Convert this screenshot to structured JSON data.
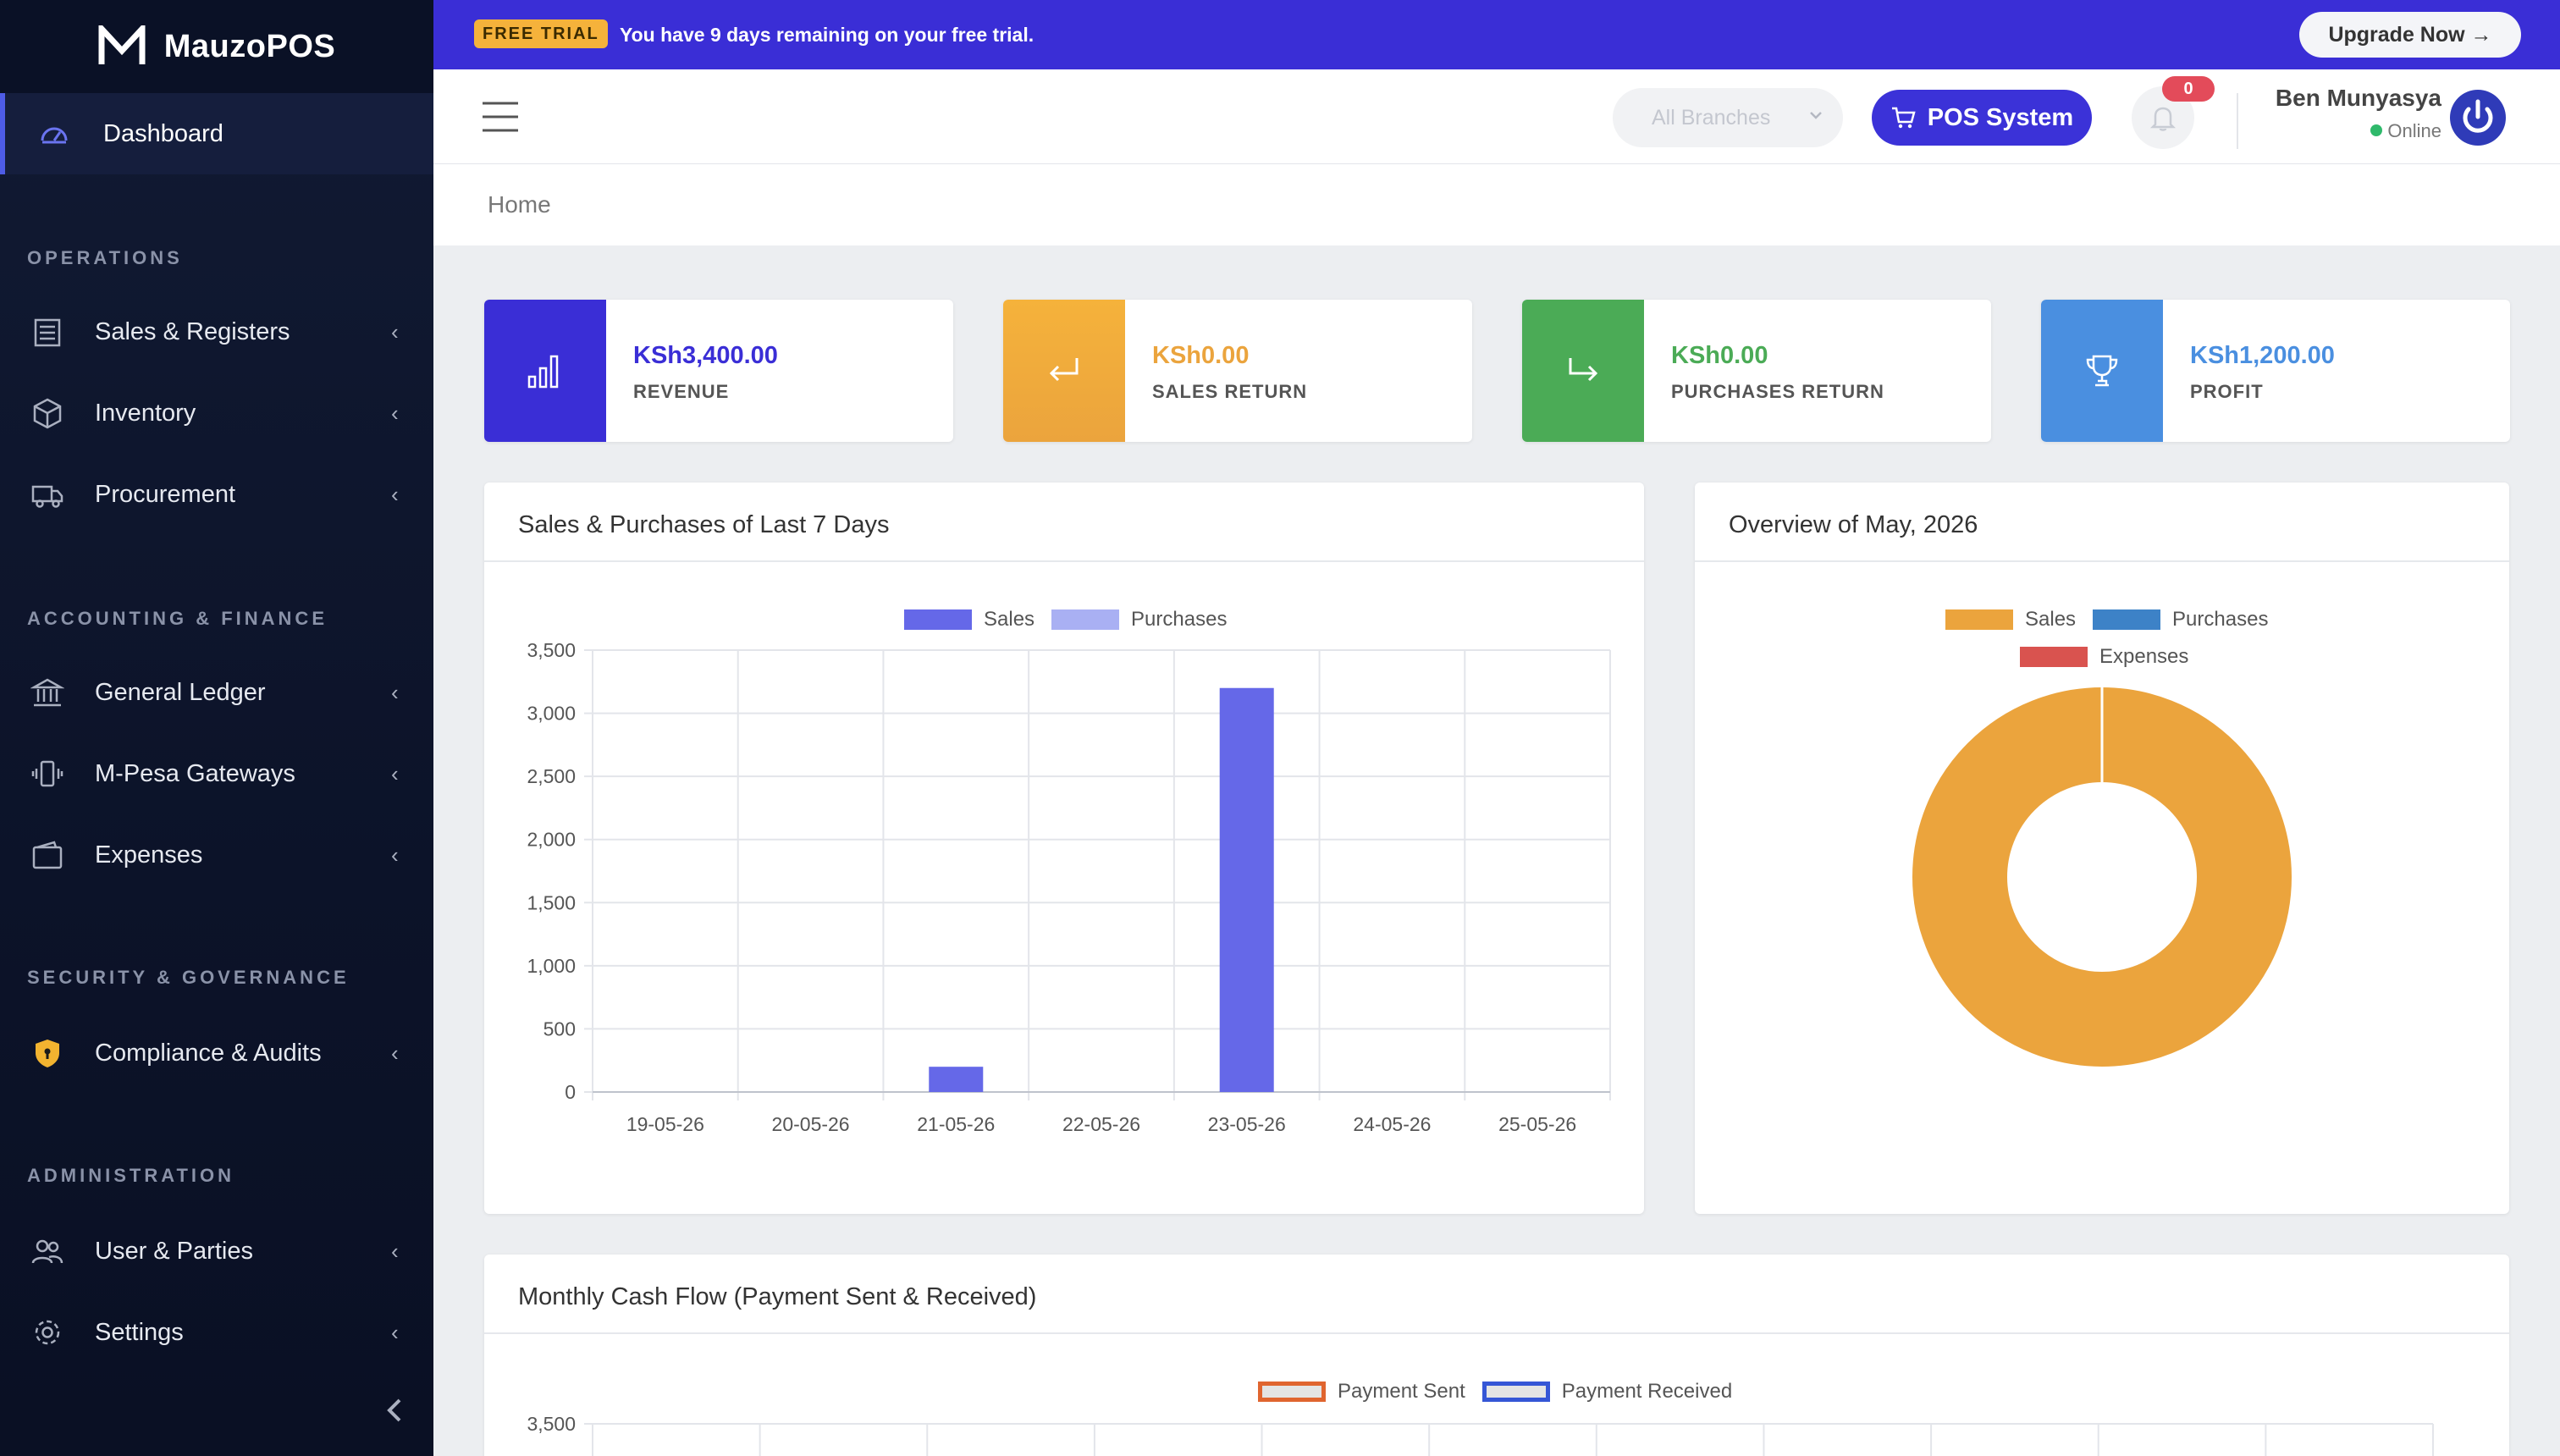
{
  "brand": {
    "name": "MauzoPOS"
  },
  "banner": {
    "badge": "FREE TRIAL",
    "text_pre": "You have ",
    "text_days": "9 days",
    "text_post": " remaining on your free trial.",
    "upgrade_label": "Upgrade Now →"
  },
  "sidebar": {
    "dashboard": "Dashboard",
    "sections": {
      "operations": "OPERATIONS",
      "accounting": "ACCOUNTING & FINANCE",
      "security": "SECURITY & GOVERNANCE",
      "administration": "ADMINISTRATION"
    },
    "items": {
      "sales": "Sales & Registers",
      "inventory": "Inventory",
      "procurement": "Procurement",
      "ledger": "General Ledger",
      "mpesa": "M-Pesa Gateways",
      "expenses": "Expenses",
      "compliance": "Compliance & Audits",
      "users": "User & Parties",
      "settings": "Settings"
    },
    "chevron": "‹",
    "collapse": "‹"
  },
  "header": {
    "branch_placeholder": "All Branches",
    "pos_label": "POS System",
    "notifications": "0",
    "user_name": "Ben Munyasya",
    "user_status": "Online"
  },
  "breadcrumb": "Home",
  "stats": {
    "revenue": {
      "value": "KSh3,400.00",
      "label": "REVENUE"
    },
    "sales_return": {
      "value": "KSh0.00",
      "label": "SALES RETURN"
    },
    "purchases_return": {
      "value": "KSh0.00",
      "label": "PURCHASES RETURN"
    },
    "profit": {
      "value": "KSh1,200.00",
      "label": "PROFIT"
    }
  },
  "colors": {
    "revenue": "#3a2ed6",
    "sales_return": "#f0a83a",
    "purchases_return": "#4bab56",
    "profit": "#4a8fe0",
    "sales_bar": "#6568e8",
    "purchases_bar": "#a9b0f3",
    "pie_sales": "#eba43d",
    "pie_purchases": "#3d82c7",
    "pie_expenses": "#d9534f",
    "sent": "#e0652f",
    "received": "#3556d6"
  },
  "panels": {
    "sales_purchases_title": "Sales & Purchases of Last 7 Days",
    "overview_title": "Overview of May, 2026",
    "cashflow_title": "Monthly Cash Flow (Payment Sent & Received)"
  },
  "chart_data": [
    {
      "type": "bar",
      "categories": [
        "19-05-26",
        "20-05-26",
        "21-05-26",
        "22-05-26",
        "23-05-26",
        "24-05-26",
        "25-05-26"
      ],
      "series": [
        {
          "name": "Sales",
          "values": [
            0,
            0,
            200,
            0,
            3200,
            0,
            0
          ]
        },
        {
          "name": "Purchases",
          "values": [
            0,
            0,
            0,
            0,
            0,
            0,
            0
          ]
        }
      ],
      "yticks": [
        "0",
        "500",
        "1,000",
        "1,500",
        "2,000",
        "2,500",
        "3,000",
        "3,500"
      ],
      "ylim": [
        0,
        3500
      ],
      "grid": true,
      "legend": "top-center"
    },
    {
      "type": "pie",
      "labels": [
        "Sales",
        "Purchases",
        "Expenses"
      ],
      "values": [
        3400,
        0,
        0
      ],
      "donut": true,
      "legend": "top-center"
    },
    {
      "type": "bar",
      "series": [
        {
          "name": "Payment Sent"
        },
        {
          "name": "Payment Received"
        }
      ],
      "yticks": [
        "3,500"
      ],
      "ylim": [
        0,
        3500
      ],
      "grid": true,
      "legend": "top-center"
    }
  ]
}
